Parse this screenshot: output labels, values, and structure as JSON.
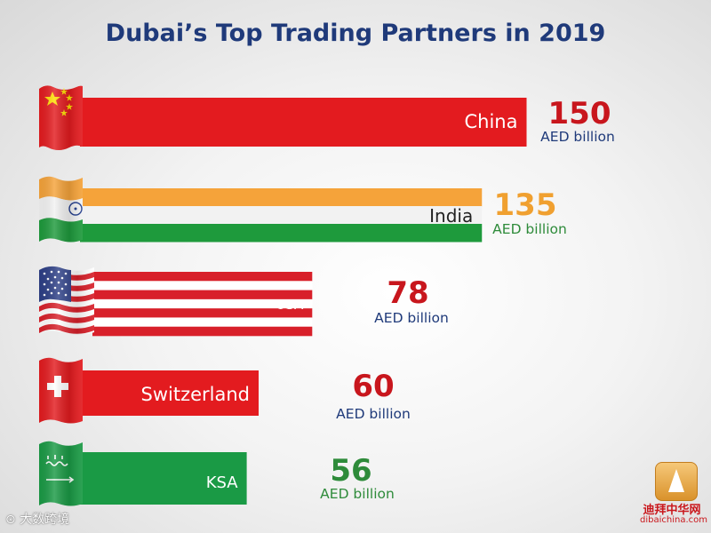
{
  "chart_data": {
    "type": "bar",
    "orientation": "horizontal",
    "title": "Dubai’s Top Trading Partners in 2019",
    "unit": "AED billion",
    "categories": [
      "China",
      "India",
      "USA",
      "Switzerland",
      "KSA"
    ],
    "values": [
      150,
      135,
      78,
      60,
      56
    ],
    "value_labels": [
      "150",
      "135",
      "78",
      "60",
      "56"
    ],
    "unit_labels": [
      "AED billion",
      "AED billion",
      "AED billion",
      "AED billion",
      "AED billion"
    ],
    "xlim": [
      0,
      150
    ],
    "grid": false,
    "legend": "none"
  },
  "colors": {
    "title": "#1f3a7a",
    "china_red": "#e31b1f",
    "china_star": "#ffde00",
    "india_saffron": "#f5a33a",
    "india_white": "#f2f2f2",
    "india_green": "#1e9a3c",
    "usa_red": "#d8202a",
    "usa_blue": "#2d3f86",
    "swiss_red": "#e31b1f",
    "ksa_green": "#1a9a45",
    "value_red": "#c8161d",
    "value_orange": "#f0a030",
    "value_green": "#2e8b3a",
    "unit_navy": "#1f3a7a"
  },
  "flags": [
    "china-flag",
    "india-flag",
    "usa-flag",
    "switzerland-flag",
    "ksa-flag"
  ],
  "watermarks": {
    "left": "大数跨境",
    "right_cn": "迪拜中华网",
    "right_url": "dibaichina.com"
  }
}
